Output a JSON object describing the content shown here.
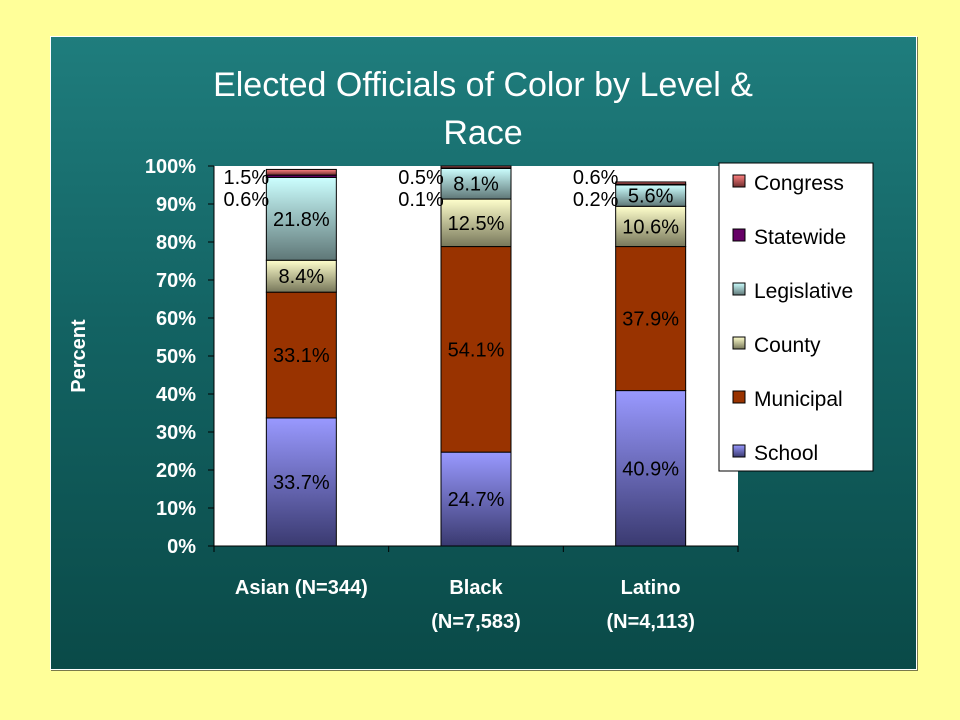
{
  "colors": {
    "page_background": "#ffff99",
    "panel_top": "#1f7d7d",
    "panel_bottom": "#0a4a48"
  },
  "chart_data": {
    "type": "bar",
    "stacked": true,
    "title": "Elected Officials of Color by Level & Race",
    "title_lines": [
      "Elected Officials of Color by Level &",
      "Race"
    ],
    "xlabel": "",
    "ylabel": "Percent",
    "ylim": [
      0,
      100
    ],
    "y_ticks": [
      0,
      10,
      20,
      30,
      40,
      50,
      60,
      70,
      80,
      90,
      100
    ],
    "y_tick_labels": [
      "0%",
      "10%",
      "20%",
      "30%",
      "40%",
      "50%",
      "60%",
      "70%",
      "80%",
      "90%",
      "100%"
    ],
    "grid": false,
    "legend_position": "right",
    "categories": [
      "Asian (N=344)",
      "Black (N=7,583)",
      "Latino (N=4,113)"
    ],
    "category_lines": [
      [
        "Asian (N=344)"
      ],
      [
        "Black",
        "(N=7,583)"
      ],
      [
        "Latino",
        "(N=4,113)"
      ]
    ],
    "series": [
      {
        "name": "School",
        "values": [
          33.7,
          24.7,
          40.9
        ],
        "labels": [
          "33.7%",
          "24.7%",
          "40.9%"
        ],
        "color": "#9999ff",
        "gradient_end": "#3a3a70"
      },
      {
        "name": "Municipal",
        "values": [
          33.1,
          54.1,
          37.9
        ],
        "labels": [
          "33.1%",
          "54.1%",
          "37.9%"
        ],
        "color": "#993300",
        "gradient_end": "#993300"
      },
      {
        "name": "County",
        "values": [
          8.4,
          12.5,
          10.6
        ],
        "labels": [
          "8.4%",
          "12.5%",
          "10.6%"
        ],
        "color": "#ffffcc",
        "gradient_end": "#77775a"
      },
      {
        "name": "Legislative",
        "values": [
          21.8,
          8.1,
          5.6
        ],
        "labels": [
          "21.8%",
          "8.1%",
          "5.6%"
        ],
        "color": "#ccffff",
        "gradient_end": "#5f7777"
      },
      {
        "name": "Statewide",
        "values": [
          0.6,
          0.1,
          0.2
        ],
        "labels": [
          "0.6%",
          "0.1%",
          "0.2%"
        ],
        "color": "#660066",
        "gradient_end": "#660066"
      },
      {
        "name": "Congress",
        "values": [
          1.5,
          0.5,
          0.6
        ],
        "labels": [
          "1.5%",
          "0.5%",
          "0.6%"
        ],
        "color": "#ff8080",
        "gradient_end": "#702f2f"
      }
    ],
    "legend_order": [
      "Congress",
      "Statewide",
      "Legislative",
      "County",
      "Municipal",
      "School"
    ]
  }
}
